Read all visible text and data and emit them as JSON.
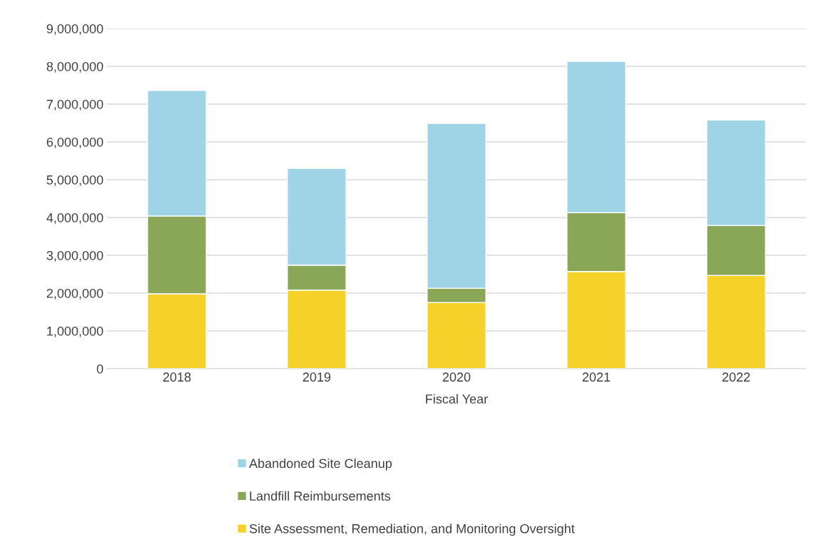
{
  "chart_data": {
    "type": "bar",
    "stacked": true,
    "xlabel": "Fiscal Year",
    "categories": [
      "2018",
      "2019",
      "2020",
      "2021",
      "2022"
    ],
    "series": [
      {
        "name": "Site Assessment, Remediation, and Monitoring Oversight",
        "color": "#f5d22a",
        "values": [
          1980000,
          2080000,
          1750000,
          2570000,
          2470000
        ]
      },
      {
        "name": "Landfill Reimbursements",
        "color": "#8aa758",
        "values": [
          2060000,
          660000,
          380000,
          1560000,
          1320000
        ]
      },
      {
        "name": "Abandoned Site Cleanup",
        "color": "#9fd4e6",
        "values": [
          3320000,
          2560000,
          4360000,
          4000000,
          2790000
        ]
      }
    ],
    "ylim": [
      0,
      9000000
    ],
    "yticks": [
      0,
      {
        "value": 1000000,
        "label": "1,000,000"
      },
      {
        "value": 2000000,
        "label": "2,000,000"
      },
      {
        "value": 3000000,
        "label": "3,000,000"
      },
      {
        "value": 4000000,
        "label": "4,000,000"
      },
      {
        "value": 5000000,
        "label": "5,000,000"
      },
      {
        "value": 6000000,
        "label": "6,000,000"
      },
      {
        "value": 7000000,
        "label": "7,000,000"
      },
      {
        "value": 8000000,
        "label": "8,000,000"
      },
      {
        "value": 9000000,
        "label": "9,000,000"
      }
    ],
    "grid": "y",
    "legend": "bottom"
  }
}
